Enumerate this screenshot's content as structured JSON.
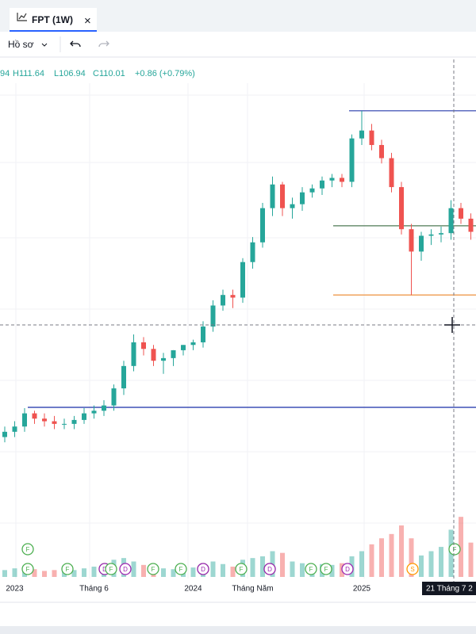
{
  "tab": {
    "title": "FPT (1W)",
    "close": "×"
  },
  "toolbar": {
    "profile": "Hồ sơ"
  },
  "legend": {
    "open": "94",
    "high": "H111.64",
    "low": "L106.94",
    "close": "C110.01",
    "change": "+0.86 (+0.79%)"
  },
  "chart_data": {
    "type": "candlestick",
    "categories": [
      null,
      "2023",
      null,
      null,
      null,
      null,
      null,
      null,
      null,
      "Tháng 6",
      null,
      null,
      null,
      null,
      null,
      null,
      null,
      null,
      null,
      "2024",
      null,
      null,
      null,
      null,
      null,
      "Tháng Năm",
      null,
      null,
      null,
      null,
      null,
      null,
      null,
      null,
      null,
      null,
      "2025",
      null,
      null,
      null,
      null,
      null,
      null,
      null,
      null,
      null,
      null,
      null
    ],
    "open": [
      31,
      33,
      35,
      40,
      38,
      37,
      36,
      36,
      37.5,
      40,
      41,
      43,
      49.5,
      58,
      67,
      64.5,
      60,
      61,
      64,
      66,
      67,
      73,
      81,
      85,
      84,
      97.5,
      105,
      118,
      127,
      118,
      119.5,
      124,
      125.5,
      128.5,
      129.5,
      128,
      144.5,
      147.5,
      142,
      137,
      126,
      110,
      101.5,
      107.5,
      108,
      108.5,
      118,
      114
    ],
    "high": [
      35,
      37,
      42,
      41,
      40,
      39,
      38,
      39,
      42,
      43,
      45,
      51,
      60,
      70,
      69,
      66,
      63,
      64,
      66,
      68,
      75,
      83,
      87,
      87,
      99,
      107,
      120,
      130,
      128,
      122,
      126,
      127,
      130,
      131,
      131,
      146,
      155,
      150,
      144,
      139,
      128,
      112,
      109,
      110,
      111,
      121,
      120,
      116
    ],
    "low": [
      29,
      31,
      33,
      36,
      35,
      34,
      34,
      34,
      36,
      38,
      39,
      41,
      47,
      56,
      62,
      58,
      55,
      58,
      62,
      64,
      65,
      71,
      79,
      80,
      82,
      95,
      103,
      115,
      115,
      114,
      117,
      122,
      123,
      126,
      126,
      126,
      142,
      140,
      135,
      124,
      108,
      85,
      98,
      104,
      105,
      106,
      112,
      106
    ],
    "close": [
      33,
      35,
      40,
      38,
      37,
      36,
      36,
      37.5,
      40,
      41,
      43,
      49.5,
      58,
      67,
      64.5,
      60,
      61,
      64,
      66,
      67,
      73,
      81,
      85,
      84,
      97.5,
      105,
      118,
      127,
      118,
      119.5,
      124,
      125.5,
      128.5,
      129.5,
      128,
      144.5,
      147.5,
      142,
      137,
      126,
      110,
      101.5,
      107.5,
      108,
      108.5,
      118,
      114,
      109
    ],
    "volume": [
      8,
      10,
      12,
      9,
      7,
      8,
      9,
      8,
      10,
      12,
      14,
      20,
      22,
      18,
      14,
      12,
      10,
      9,
      10,
      11,
      12,
      18,
      15,
      12,
      20,
      22,
      24,
      30,
      28,
      18,
      16,
      14,
      15,
      14,
      16,
      24,
      30,
      38,
      45,
      50,
      60,
      45,
      25,
      30,
      35,
      55,
      70,
      40
    ],
    "ylim": [
      20,
      170
    ],
    "volume_lim": [
      0,
      120
    ],
    "up_color": "#26a69a",
    "down_color": "#ef5350",
    "lines": [
      {
        "value": 155,
        "color": "#5c6bc0"
      },
      {
        "value": 111.3,
        "color": "#6b8f71"
      },
      {
        "value": 85,
        "color": "#f0a35e"
      },
      {
        "value": 42.3,
        "color": "#3f51b5"
      }
    ],
    "events": [
      "F",
      "F",
      "F",
      "F",
      "D",
      "D",
      "F",
      "F",
      "F",
      "F",
      "D",
      "F",
      "F",
      "D",
      "F",
      "F",
      "D",
      "S",
      "F"
    ],
    "crosshair_label": "21 Tháng 7 2"
  }
}
